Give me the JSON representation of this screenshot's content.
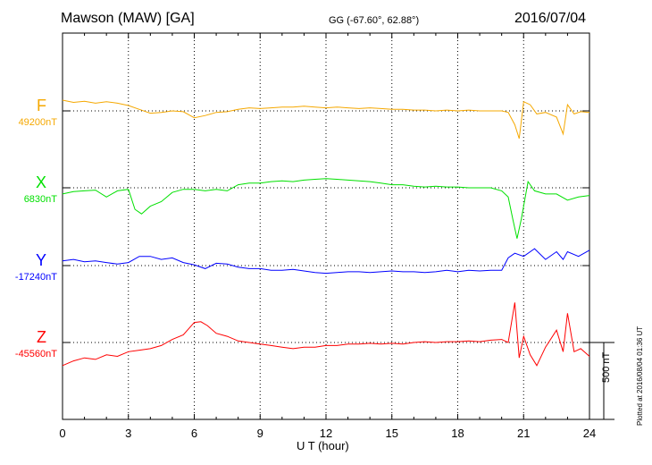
{
  "header": {
    "station": "Mawson (MAW)  [GA]",
    "coords": "GG (-67.60°,  62.88°)",
    "date": "2016/07/04"
  },
  "footer": {
    "xlabel": "U T (hour)",
    "scale_label": "500 nT",
    "plotted": "Plotted at 2016/08/04 01:36 UT"
  },
  "chart_data": {
    "type": "line",
    "title": "Mawson (MAW)  [GA]",
    "xlabel": "U T (hour)",
    "ylabel": "",
    "xlim": [
      0,
      24
    ],
    "xticks": [
      0,
      3,
      6,
      9,
      12,
      15,
      18,
      21,
      24
    ],
    "vertical_grid": "dotted every 3 hours",
    "scale_bar_nT": 500,
    "series": [
      {
        "name": "F",
        "baseline_label": "49200nT",
        "color": "#f5a800",
        "x": [
          0,
          0.5,
          1,
          1.5,
          2,
          2.5,
          3,
          3.5,
          4,
          4.5,
          5,
          5.5,
          6,
          6.5,
          7,
          7.5,
          8,
          8.5,
          9,
          9.5,
          10,
          10.5,
          11,
          11.5,
          12,
          12.5,
          13,
          13.5,
          14,
          14.5,
          15,
          15.5,
          16,
          16.5,
          17,
          17.5,
          18,
          18.5,
          19,
          19.5,
          20,
          20.3,
          20.6,
          20.8,
          21,
          21.3,
          21.6,
          22,
          22.5,
          22.8,
          23,
          23.3,
          23.6,
          24
        ],
        "values": [
          70,
          55,
          62,
          50,
          60,
          50,
          35,
          10,
          -15,
          -10,
          0,
          -5,
          -45,
          -30,
          -10,
          -5,
          10,
          20,
          15,
          20,
          25,
          25,
          30,
          25,
          20,
          25,
          20,
          15,
          20,
          15,
          10,
          10,
          5,
          5,
          0,
          5,
          0,
          5,
          0,
          0,
          0,
          -10,
          -90,
          -180,
          60,
          40,
          -20,
          -10,
          -40,
          -150,
          40,
          -20,
          -5,
          -10
        ]
      },
      {
        "name": "X",
        "baseline_label": "6830nT",
        "color": "#00e000",
        "x": [
          0,
          0.5,
          1,
          1.5,
          2,
          2.5,
          3,
          3.3,
          3.6,
          4,
          4.5,
          5,
          5.5,
          6,
          6.5,
          7,
          7.5,
          8,
          8.5,
          9,
          9.5,
          10,
          10.5,
          11,
          11.5,
          12,
          12.5,
          13,
          13.5,
          14,
          14.5,
          15,
          15.5,
          16,
          16.5,
          17,
          17.5,
          18,
          18.5,
          19,
          19.5,
          20,
          20.3,
          20.5,
          20.7,
          20.9,
          21.2,
          21.5,
          22,
          22.5,
          23,
          23.5,
          24
        ],
        "values": [
          -40,
          -25,
          -20,
          -15,
          -60,
          -20,
          -10,
          -140,
          -170,
          -120,
          -90,
          -30,
          -10,
          -10,
          -20,
          -10,
          -20,
          20,
          30,
          30,
          40,
          45,
          40,
          50,
          55,
          60,
          55,
          50,
          45,
          40,
          30,
          20,
          20,
          10,
          5,
          10,
          5,
          5,
          0,
          0,
          0,
          -20,
          -60,
          -200,
          -330,
          -200,
          40,
          -20,
          -40,
          -40,
          -80,
          -60,
          -50
        ]
      },
      {
        "name": "Y",
        "baseline_label": "-17240nT",
        "color": "#0000ff",
        "x": [
          0,
          0.5,
          1,
          1.5,
          2,
          2.5,
          3,
          3.5,
          4,
          4.5,
          5,
          5.5,
          6,
          6.5,
          7,
          7.5,
          8,
          8.5,
          9,
          9.5,
          10,
          10.5,
          11,
          11.5,
          12,
          12.5,
          13,
          13.5,
          14,
          14.5,
          15,
          15.5,
          16,
          16.5,
          17,
          17.5,
          18,
          18.5,
          19,
          19.5,
          20,
          20.3,
          20.6,
          21,
          21.5,
          22,
          22.5,
          22.8,
          23,
          23.5,
          24
        ],
        "values": [
          30,
          40,
          25,
          30,
          20,
          10,
          20,
          60,
          60,
          40,
          50,
          20,
          5,
          -20,
          15,
          10,
          -10,
          -20,
          -20,
          -30,
          -30,
          -25,
          -35,
          -45,
          -50,
          -45,
          -40,
          -40,
          -45,
          -40,
          -35,
          -40,
          -40,
          -45,
          -40,
          -30,
          -40,
          -30,
          -35,
          -30,
          -30,
          50,
          80,
          60,
          110,
          40,
          90,
          40,
          90,
          60,
          100
        ]
      },
      {
        "name": "Z",
        "baseline_label": "-45560nT",
        "color": "#ff0000",
        "x": [
          0,
          0.5,
          1,
          1.5,
          2,
          2.5,
          3,
          3.5,
          4,
          4.5,
          5,
          5.5,
          6,
          6.3,
          6.6,
          7,
          7.5,
          8,
          8.5,
          9,
          9.5,
          10,
          10.5,
          11,
          11.5,
          12,
          12.5,
          13,
          13.5,
          14,
          14.5,
          15,
          15.5,
          16,
          16.5,
          17,
          17.5,
          18,
          18.5,
          19,
          19.5,
          20,
          20.3,
          20.6,
          20.8,
          21,
          21.3,
          21.6,
          22,
          22.5,
          22.8,
          23,
          23.3,
          23.6,
          24
        ],
        "values": [
          -150,
          -120,
          -100,
          -110,
          -80,
          -90,
          -60,
          -50,
          -40,
          -20,
          20,
          50,
          130,
          135,
          110,
          60,
          40,
          10,
          0,
          -10,
          -20,
          -30,
          -40,
          -30,
          -30,
          -20,
          -20,
          -10,
          -10,
          -5,
          -10,
          -5,
          -10,
          0,
          5,
          0,
          5,
          5,
          10,
          5,
          15,
          20,
          0,
          260,
          -100,
          40,
          -80,
          -150,
          -30,
          80,
          -60,
          190,
          -60,
          -40,
          -90
        ]
      }
    ]
  }
}
